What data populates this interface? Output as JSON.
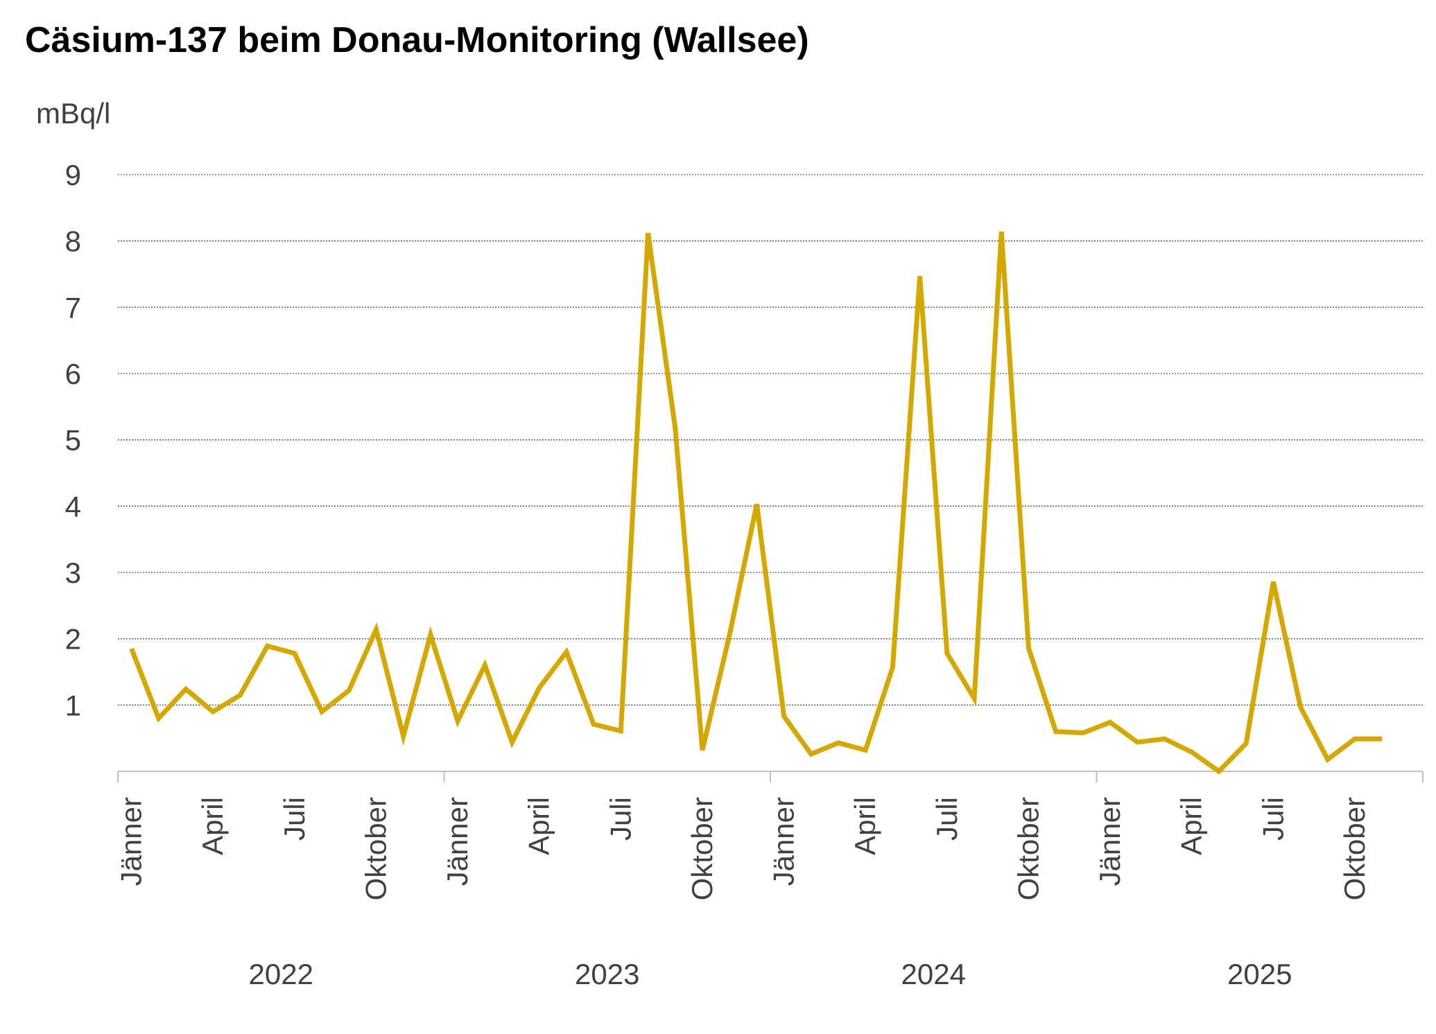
{
  "chart_data": {
    "type": "line",
    "title": "Cäsium-137 beim Donau-Monitoring (Wallsee)",
    "ylabel": "mBq/l",
    "ylim": [
      0,
      9
    ],
    "yticks": [
      1,
      2,
      3,
      4,
      5,
      6,
      7,
      8,
      9
    ],
    "grid": true,
    "line_color": "#D4A800",
    "month_tick_labels": [
      "Jänner",
      "April",
      "Juli",
      "Oktober"
    ],
    "years": [
      "2022",
      "2023",
      "2024",
      "2025"
    ],
    "x_months": 48,
    "series": [
      {
        "values": [
          1.85,
          0.8,
          1.24,
          0.9,
          1.15,
          1.89,
          1.78,
          0.9,
          1.22,
          2.14,
          0.53,
          2.06,
          0.76,
          1.6,
          0.44,
          1.26,
          1.8,
          0.71,
          0.61,
          8.12,
          5.18,
          0.32,
          2.06,
          4.03,
          0.83,
          0.26,
          0.43,
          0.32,
          1.57,
          7.47,
          1.78,
          1.1,
          8.14,
          1.86,
          0.6,
          0.58,
          0.74,
          0.44,
          0.49,
          0.29,
          0.0,
          0.42,
          2.86,
          0.97,
          0.18,
          0.49,
          0.49
        ]
      }
    ]
  }
}
